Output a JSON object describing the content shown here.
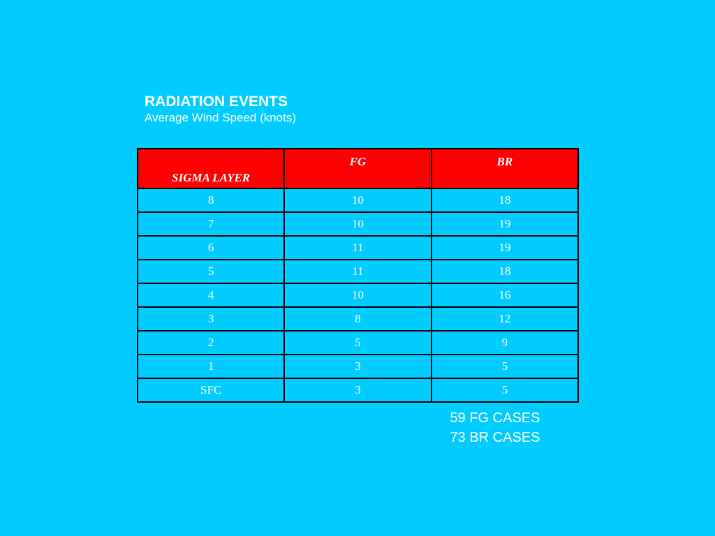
{
  "header": {
    "title": "RADIATION EVENTS",
    "subtitle": "Average Wind Speed (knots)"
  },
  "table": {
    "columns": [
      "SIGMA LAYER",
      "FG",
      "BR"
    ],
    "rows": [
      [
        "8",
        "10",
        "18"
      ],
      [
        "7",
        "10",
        "19"
      ],
      [
        "6",
        "11",
        "19"
      ],
      [
        "5",
        "11",
        "18"
      ],
      [
        "4",
        "10",
        "16"
      ],
      [
        "3",
        "8",
        "12"
      ],
      [
        "2",
        "5",
        "9"
      ],
      [
        "1",
        "3",
        "5"
      ],
      [
        "SFC",
        "3",
        "5"
      ]
    ]
  },
  "notes": {
    "fg_cases": "59 FG CASES",
    "br_cases": "73 BR CASES"
  },
  "colors": {
    "background": "#00ccff",
    "header_fill": "#ff0000",
    "text": "#ffffff",
    "border": "#000000"
  }
}
